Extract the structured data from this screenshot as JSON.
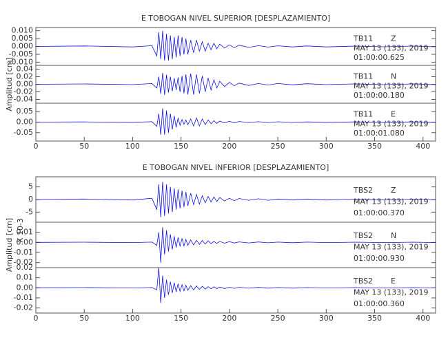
{
  "chart_data": [
    {
      "type": "line",
      "title": "E TOBOGAN NIVEL SUPERIOR [DESPLAZAMIENTO]",
      "station": "TB11",
      "component": "Z",
      "date": "MAY 13 (133), 2019",
      "time": "01:00:00.625",
      "color": "#1010e0",
      "xlim": [
        0,
        413
      ],
      "ylim": [
        -0.012,
        0.012
      ],
      "yticks": [
        {
          "value": 0.01,
          "label": "0.010"
        },
        {
          "value": 0.005,
          "label": "0.005"
        },
        {
          "value": 0,
          "label": "0.000"
        },
        {
          "value": -0.005,
          "label": "-0.005"
        },
        {
          "value": -0.01,
          "label": "-0.010"
        }
      ],
      "x": [
        0,
        50,
        100,
        120,
        125,
        127,
        129,
        131,
        133,
        135,
        137,
        139,
        141,
        143,
        145,
        147,
        149,
        151,
        153,
        155,
        157,
        160,
        163,
        166,
        169,
        172,
        175,
        178,
        181,
        184,
        187,
        190,
        195,
        200,
        205,
        210,
        220,
        230,
        240,
        250,
        265,
        280,
        300,
        330,
        360,
        390,
        413
      ],
      "values": [
        0,
        0.0003,
        -0.0003,
        0.0005,
        -0.006,
        0.009,
        -0.008,
        0.01,
        -0.009,
        0.008,
        -0.009,
        0.007,
        -0.008,
        0.006,
        -0.007,
        0.007,
        -0.006,
        0.006,
        -0.005,
        0.005,
        -0.005,
        0.004,
        -0.004,
        0.004,
        -0.003,
        0.003,
        -0.003,
        0.002,
        -0.002,
        0.002,
        -0.0015,
        0.0015,
        -0.001,
        0.001,
        -0.0008,
        0.0008,
        -0.0006,
        0.0005,
        -0.0004,
        0.0004,
        -0.0003,
        0.0003,
        -0.0003,
        0.0002,
        -0.0002,
        0.0002,
        -0.0002
      ]
    },
    {
      "type": "line",
      "y_label": "Amplitud [cm]",
      "station": "TB11",
      "component": "N",
      "date": "MAY 13 (133), 2019",
      "time": "01:00:00.180",
      "color": "#1010e0",
      "xlim": [
        0,
        413
      ],
      "ylim": [
        -0.05,
        0.05
      ],
      "yticks": [
        0.04,
        0.02,
        {
          "value": 0,
          "label": "0.00"
        },
        -0.02,
        -0.04
      ],
      "x": [
        0,
        50,
        100,
        120,
        125,
        127,
        129,
        131,
        133,
        135,
        137,
        139,
        141,
        143,
        145,
        147,
        149,
        151,
        153,
        155,
        157,
        160,
        163,
        166,
        169,
        172,
        175,
        178,
        181,
        184,
        187,
        190,
        195,
        200,
        205,
        210,
        220,
        230,
        240,
        250,
        265,
        280,
        300,
        330,
        360,
        390,
        413
      ],
      "values": [
        0,
        0.001,
        -0.001,
        0.002,
        -0.01,
        0.02,
        -0.025,
        0.03,
        -0.028,
        0.025,
        -0.022,
        0.02,
        -0.018,
        0.016,
        -0.015,
        0.018,
        -0.02,
        0.022,
        -0.024,
        0.026,
        -0.027,
        0.028,
        -0.027,
        0.026,
        -0.024,
        0.022,
        -0.02,
        0.017,
        -0.015,
        0.012,
        -0.01,
        0.008,
        -0.006,
        0.005,
        -0.004,
        0.003,
        -0.003,
        0.002,
        -0.002,
        0.002,
        -0.0015,
        0.0015,
        -0.001,
        0.001,
        -0.001,
        0.001,
        -0.001
      ]
    },
    {
      "type": "line",
      "station": "TB11",
      "component": "E",
      "date": "MAY 13 (133), 2019",
      "time": "01:00:01.080",
      "color": "#1010e0",
      "xlim": [
        0,
        413
      ],
      "ylim": [
        -0.09,
        0.09
      ],
      "yticks": [
        0.05,
        {
          "value": 0,
          "label": "0.00"
        },
        -0.05
      ],
      "xticks": [
        0,
        50,
        100,
        150,
        200,
        250,
        300,
        350,
        400
      ],
      "x": [
        0,
        50,
        100,
        120,
        125,
        127,
        129,
        131,
        133,
        135,
        137,
        139,
        141,
        143,
        145,
        147,
        149,
        151,
        153,
        155,
        157,
        160,
        163,
        166,
        169,
        172,
        175,
        178,
        181,
        184,
        187,
        190,
        195,
        200,
        205,
        210,
        220,
        230,
        240,
        250,
        265,
        280,
        300,
        330,
        360,
        390,
        413
      ],
      "values": [
        0,
        0.001,
        -0.001,
        0.002,
        -0.02,
        0.04,
        -0.06,
        0.065,
        -0.06,
        0.055,
        -0.05,
        0.04,
        -0.035,
        0.03,
        -0.025,
        0.02,
        -0.015,
        0.012,
        -0.01,
        0.01,
        -0.012,
        0.015,
        -0.018,
        0.02,
        -0.018,
        0.015,
        -0.012,
        0.01,
        -0.008,
        0.007,
        -0.006,
        0.005,
        -0.004,
        0.004,
        -0.003,
        0.003,
        -0.002,
        0.002,
        -0.002,
        0.0015,
        -0.0015,
        0.001,
        -0.001,
        0.001,
        -0.001,
        0.001,
        -0.001
      ]
    },
    {
      "type": "line",
      "title": "E TOBOGAN NIVEL INFERIOR [DESPLAZAMIENTO]",
      "y_multiplier": "X 10-3",
      "station": "TBS2",
      "component": "Z",
      "date": "MAY 13 (133), 2019",
      "time": "01:00:00.370",
      "color": "#1010e0",
      "xlim": [
        0,
        413
      ],
      "ylim": [
        -9,
        9
      ],
      "yticks": [
        5,
        0,
        -5
      ],
      "x": [
        0,
        50,
        100,
        120,
        125,
        127,
        129,
        131,
        133,
        135,
        137,
        139,
        141,
        143,
        145,
        147,
        149,
        151,
        153,
        155,
        157,
        160,
        163,
        166,
        169,
        172,
        175,
        178,
        181,
        184,
        187,
        190,
        195,
        200,
        205,
        210,
        220,
        230,
        240,
        250,
        265,
        280,
        300,
        330,
        360,
        390,
        413
      ],
      "values": [
        0,
        0.2,
        -0.2,
        0.5,
        -4,
        6,
        -7,
        7,
        -6.5,
        6,
        -5.5,
        5,
        -5,
        4.5,
        -4,
        4,
        -3.5,
        3.5,
        -3,
        3,
        -2.5,
        2.5,
        -2,
        2,
        -1.8,
        1.5,
        -1.3,
        1.2,
        -1,
        1,
        -0.8,
        0.8,
        -0.6,
        0.5,
        -0.5,
        0.4,
        -0.3,
        0.3,
        -0.3,
        0.2,
        -0.2,
        0.2,
        -0.2,
        0.15,
        -0.15,
        0.1,
        -0.1
      ]
    },
    {
      "type": "line",
      "y_label": "Amplitud [cm]",
      "station": "TBS2",
      "component": "N",
      "date": "MAY 13 (133), 2019",
      "time": "01:00:00.930",
      "color": "#1010e0",
      "xlim": [
        0,
        413
      ],
      "ylim": [
        -0.025,
        0.02
      ],
      "yticks": [
        0.01,
        {
          "value": 0,
          "label": "0.00"
        },
        -0.01,
        -0.02
      ],
      "x": [
        0,
        50,
        100,
        120,
        125,
        127,
        129,
        131,
        133,
        135,
        137,
        139,
        141,
        143,
        145,
        147,
        149,
        151,
        153,
        155,
        157,
        160,
        163,
        166,
        169,
        172,
        175,
        178,
        181,
        184,
        187,
        190,
        195,
        200,
        205,
        210,
        220,
        230,
        240,
        250,
        265,
        280,
        300,
        330,
        360,
        390,
        413
      ],
      "values": [
        0,
        0.0002,
        -0.0002,
        0.0003,
        -0.003,
        0.01,
        -0.02,
        0.015,
        -0.012,
        0.012,
        -0.009,
        0.008,
        -0.007,
        0.006,
        -0.005,
        0.005,
        -0.004,
        0.004,
        -0.0035,
        0.003,
        -0.003,
        0.0025,
        -0.0025,
        0.002,
        -0.002,
        0.0018,
        -0.0016,
        0.0015,
        -0.0012,
        0.001,
        -0.001,
        0.001,
        -0.0008,
        0.0008,
        -0.0006,
        0.0005,
        -0.0005,
        0.0004,
        -0.0004,
        0.0003,
        -0.0003,
        0.0003,
        -0.0002,
        0.0002,
        -0.0002,
        0.0002,
        -0.0002
      ]
    },
    {
      "type": "line",
      "station": "TBS2",
      "component": "E",
      "date": "MAY 13 (133), 2019",
      "time": "01:00:00.360",
      "color": "#1010e0",
      "xlim": [
        0,
        413
      ],
      "ylim": [
        -0.025,
        0.02
      ],
      "yticks": [
        0.02,
        0.01,
        {
          "value": 0,
          "label": "0.00"
        },
        -0.01,
        -0.02
      ],
      "xticks": [
        0,
        50,
        100,
        150,
        200,
        250,
        300,
        350,
        400
      ],
      "x": [
        0,
        50,
        100,
        120,
        125,
        127,
        129,
        131,
        133,
        135,
        137,
        139,
        141,
        143,
        145,
        147,
        149,
        151,
        153,
        155,
        157,
        160,
        163,
        166,
        169,
        172,
        175,
        178,
        181,
        184,
        187,
        190,
        195,
        200,
        205,
        210,
        220,
        230,
        240,
        250,
        265,
        280,
        300,
        330,
        360,
        390,
        413
      ],
      "values": [
        0,
        0.0002,
        -0.0002,
        0.0003,
        -0.002,
        0.02,
        -0.015,
        0.012,
        -0.01,
        0.008,
        -0.007,
        0.006,
        -0.005,
        0.005,
        -0.004,
        0.004,
        -0.0035,
        0.003,
        -0.003,
        0.0025,
        -0.0025,
        0.002,
        -0.002,
        0.0018,
        -0.0016,
        0.0015,
        -0.0013,
        0.0012,
        -0.001,
        0.001,
        -0.0008,
        0.0008,
        -0.0007,
        0.0006,
        -0.0005,
        0.0005,
        -0.0004,
        0.0004,
        -0.0003,
        0.0003,
        -0.0003,
        0.0002,
        -0.0002,
        0.0002,
        -0.0002,
        0.0002,
        -0.0002
      ]
    }
  ]
}
